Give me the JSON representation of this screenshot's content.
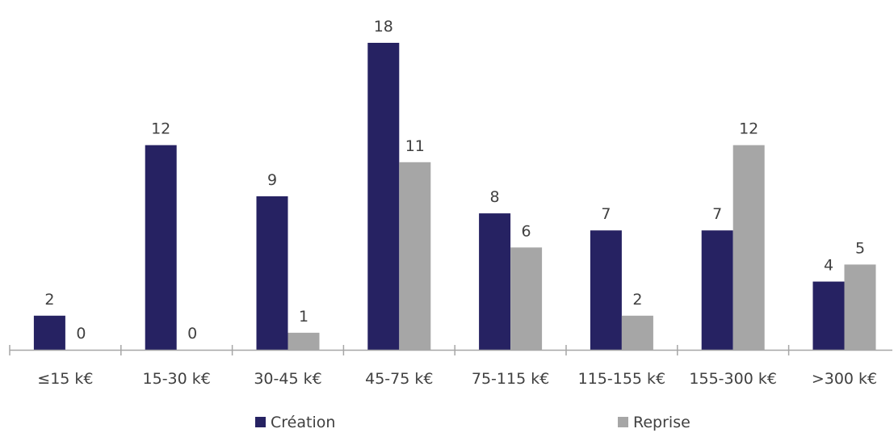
{
  "chart_data": {
    "type": "bar",
    "title": "",
    "xlabel": "",
    "ylabel": "",
    "categories": [
      "≤15 k€",
      "15-30 k€",
      "30-45 k€",
      "45-75 k€",
      "75-115 k€",
      "115-155 k€",
      "155-300 k€",
      ">300 k€"
    ],
    "series": [
      {
        "name": "Création",
        "values": [
          2,
          12,
          9,
          18,
          8,
          7,
          7,
          4
        ],
        "color": "#262262"
      },
      {
        "name": "Reprise",
        "values": [
          0,
          0,
          1,
          11,
          6,
          2,
          12,
          5
        ],
        "color": "#a6a6a6"
      }
    ],
    "ylim": [
      0,
      18
    ],
    "grid": false,
    "legend": "bottom",
    "data_labels": true,
    "axis_color": "#a6a6a6",
    "label_color": "#404040"
  }
}
